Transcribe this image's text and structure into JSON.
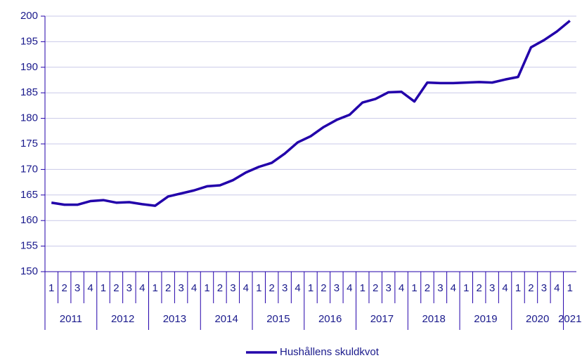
{
  "chart_data": {
    "type": "line",
    "categories": [
      "1",
      "2",
      "3",
      "4",
      "1",
      "2",
      "3",
      "4",
      "1",
      "2",
      "3",
      "4",
      "1",
      "2",
      "3",
      "4",
      "1",
      "2",
      "3",
      "4",
      "1",
      "2",
      "3",
      "4",
      "1",
      "2",
      "3",
      "4",
      "1",
      "2",
      "3",
      "4",
      "1",
      "2",
      "3",
      "4",
      "1",
      "2",
      "3",
      "4",
      "1"
    ],
    "years": [
      "2011",
      "2012",
      "2013",
      "2014",
      "2015",
      "2016",
      "2017",
      "2018",
      "2019",
      "2020",
      "2021"
    ],
    "series": [
      {
        "name": "Hushållens skuldkvot",
        "color": "#2200aa",
        "values": [
          163.5,
          163.1,
          163.1,
          163.8,
          164.0,
          163.5,
          163.6,
          163.2,
          162.9,
          164.7,
          165.3,
          165.9,
          166.7,
          166.9,
          167.9,
          169.4,
          170.5,
          171.3,
          173.1,
          175.3,
          176.5,
          178.3,
          179.7,
          180.7,
          183.1,
          183.8,
          185.1,
          185.2,
          183.3,
          187.0,
          186.9,
          186.9,
          187.0,
          187.1,
          187.0,
          187.6,
          188.1,
          193.9,
          195.3,
          197.0,
          199.1
        ]
      }
    ],
    "ylim": [
      150,
      200
    ],
    "yticks": [
      150,
      155,
      160,
      165,
      170,
      175,
      180,
      185,
      190,
      195,
      200
    ],
    "grid": true,
    "legend": "bottom"
  }
}
